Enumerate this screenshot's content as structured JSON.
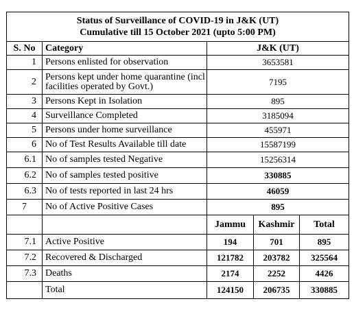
{
  "title_line1": "Status of Surveillance of COVID-19 in J&K (UT)",
  "title_line2": "Cumulative till 15 October 2021 (upto 5:00 PM)",
  "headers": {
    "sno": "S. No",
    "category": "Category",
    "value": "J&K (UT)"
  },
  "rows": [
    {
      "sno": "1",
      "category": "Persons enlisted for observation",
      "value": "3653581"
    },
    {
      "sno": "2",
      "category": "Persons kept under home quarantine (incl facilities operated by Govt.)",
      "value": "7195"
    },
    {
      "sno": "3",
      "category": "Persons Kept in Isolation",
      "value": "895"
    },
    {
      "sno": "4",
      "category": "Surveillance  Completed",
      "value": "3185094"
    },
    {
      "sno": "5",
      "category": "Persons under home surveillance",
      "value": "455971"
    },
    {
      "sno": "6",
      "category": "No of Test Results Available till date",
      "value": "15587199"
    },
    {
      "sno": "6.1",
      "category": "No of samples tested Negative",
      "value": "15256314"
    },
    {
      "sno": "6.2",
      "category": "No of samples tested positive",
      "value": "330885"
    },
    {
      "sno": "6.3",
      "category": "No of tests reported in last 24 hrs",
      "value": "46059"
    },
    {
      "sno": "7",
      "category": "No of Active Positive Cases",
      "value": "895"
    }
  ],
  "sub_headers": {
    "jammu": "Jammu",
    "kashmir": "Kashmir",
    "total": "Total"
  },
  "breakdown": [
    {
      "sno": "7.1",
      "category": "Active Positive",
      "jammu": "194",
      "kashmir": "701",
      "total": "895"
    },
    {
      "sno": "7.2",
      "category": "Recovered & Discharged",
      "jammu": "121782",
      "kashmir": "203782",
      "total": "325564"
    },
    {
      "sno": "7.3",
      "category": "Deaths",
      "jammu": "2174",
      "kashmir": "2252",
      "total": "4426"
    }
  ],
  "total_row": {
    "label": "Total",
    "jammu": "124150",
    "kashmir": "206735",
    "total": "330885"
  }
}
